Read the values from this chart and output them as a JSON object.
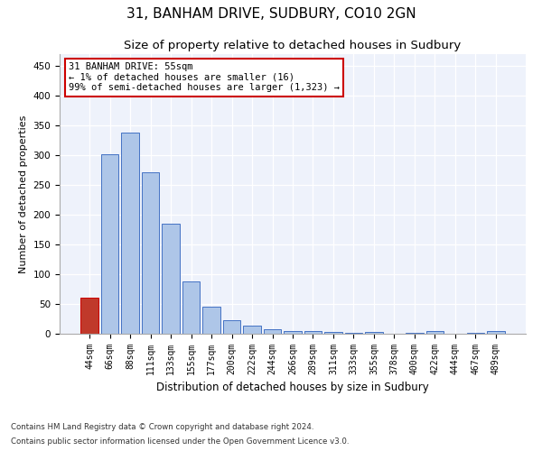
{
  "title": "31, BANHAM DRIVE, SUDBURY, CO10 2GN",
  "subtitle": "Size of property relative to detached houses in Sudbury",
  "xlabel": "Distribution of detached houses by size in Sudbury",
  "ylabel": "Number of detached properties",
  "categories": [
    "44sqm",
    "66sqm",
    "88sqm",
    "111sqm",
    "133sqm",
    "155sqm",
    "177sqm",
    "200sqm",
    "222sqm",
    "244sqm",
    "266sqm",
    "289sqm",
    "311sqm",
    "333sqm",
    "355sqm",
    "378sqm",
    "400sqm",
    "422sqm",
    "444sqm",
    "467sqm",
    "489sqm"
  ],
  "values": [
    60,
    301,
    338,
    272,
    185,
    88,
    45,
    22,
    13,
    7,
    5,
    4,
    3,
    1,
    3,
    0,
    1,
    4,
    0,
    1,
    4
  ],
  "bar_color_default": "#aec6e8",
  "bar_color_highlight": "#c0392b",
  "highlight_index": 0,
  "bar_edge_color": "#4472c4",
  "annotation_line1": "31 BANHAM DRIVE: 55sqm",
  "annotation_line2": "← 1% of detached houses are smaller (16)",
  "annotation_line3": "99% of semi-detached houses are larger (1,323) →",
  "annotation_box_color": "#ffffff",
  "annotation_box_edge": "#cc0000",
  "ylim": [
    0,
    470
  ],
  "yticks": [
    0,
    50,
    100,
    150,
    200,
    250,
    300,
    350,
    400,
    450
  ],
  "bg_color": "#eef2fb",
  "footer1": "Contains HM Land Registry data © Crown copyright and database right 2024.",
  "footer2": "Contains public sector information licensed under the Open Government Licence v3.0.",
  "title_fontsize": 11,
  "subtitle_fontsize": 9.5,
  "tick_fontsize": 7,
  "xlabel_fontsize": 8.5,
  "ylabel_fontsize": 8
}
